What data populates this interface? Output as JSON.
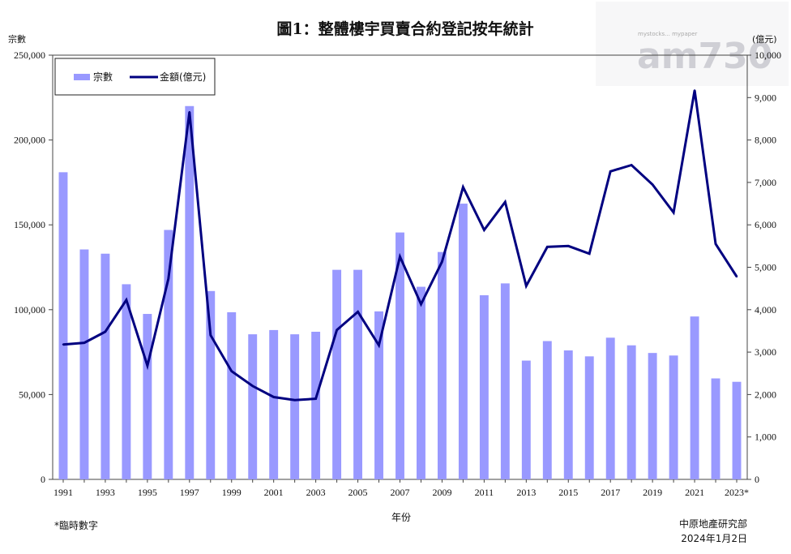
{
  "chart_data": {
    "type": "bar+line",
    "title": "圖1：整體樓宇買賣合約登記按年統計",
    "xlabel": "年份",
    "y_left_label": "宗數",
    "y_right_label": "(億元)",
    "y_left_lim": [
      0,
      250000
    ],
    "y_right_lim": [
      0,
      10000
    ],
    "y_left_ticks": [
      "0",
      "50,000",
      "100,000",
      "150,000",
      "200,000",
      "250,000"
    ],
    "y_right_ticks": [
      "0",
      "1,000",
      "2,000",
      "3,000",
      "4,000",
      "5,000",
      "6,000",
      "7,000",
      "8,000",
      "9,000",
      "10,000"
    ],
    "x_tick_labels": [
      "1991",
      "1993",
      "1995",
      "1997",
      "1999",
      "2001",
      "2003",
      "2005",
      "2007",
      "2009",
      "2011",
      "2013",
      "2015",
      "2017",
      "2019",
      "2021",
      "2023*"
    ],
    "categories": [
      "1991",
      "1992",
      "1993",
      "1994",
      "1995",
      "1996",
      "1997",
      "1998",
      "1999",
      "2000",
      "2001",
      "2002",
      "2003",
      "2004",
      "2005",
      "2006",
      "2007",
      "2008",
      "2009",
      "2010",
      "2011",
      "2012",
      "2013",
      "2014",
      "2015",
      "2016",
      "2017",
      "2018",
      "2019",
      "2020",
      "2021",
      "2022",
      "2023"
    ],
    "series": [
      {
        "name": "宗數",
        "type": "bar",
        "axis": "left",
        "color": "#9999ff",
        "values": [
          181000,
          135500,
          133000,
          115000,
          97500,
          147000,
          220000,
          111000,
          98500,
          85500,
          88000,
          85500,
          87000,
          123500,
          123500,
          99000,
          145500,
          113500,
          134000,
          162500,
          108500,
          115500,
          70000,
          81500,
          76000,
          72500,
          83500,
          79000,
          74500,
          73000,
          96000,
          59500,
          57500
        ]
      },
      {
        "name": "金額(億元)",
        "type": "line",
        "axis": "right",
        "color": "#000080",
        "values": [
          3180,
          3220,
          3480,
          4230,
          2680,
          4730,
          8660,
          3400,
          2550,
          2200,
          1940,
          1870,
          1900,
          3520,
          3950,
          3160,
          5250,
          4130,
          5130,
          6890,
          5880,
          6540,
          4560,
          5480,
          5500,
          5320,
          7260,
          7410,
          6950,
          6290,
          9170,
          5550,
          4780
        ]
      }
    ],
    "legend_position": "top-left",
    "grid": false
  },
  "notes": {
    "footnote": "*臨時數字",
    "source": "中原地產研究部",
    "date": "2024年1月2日"
  },
  "watermark": {
    "logo_text": "am730",
    "small_text": "mystocks... mypaper"
  }
}
